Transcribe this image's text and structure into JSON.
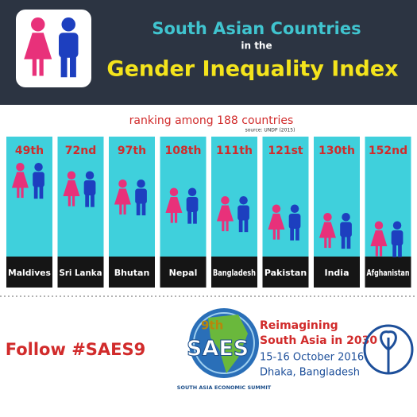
{
  "header": {
    "title_line1": "South Asian Countries",
    "title_line2": "in the",
    "title_line3": "Gender Inequality Index"
  },
  "subtitle": "ranking among 188 countries",
  "source": "source: UNDP (2015)",
  "countries": [
    {
      "rank": "49th",
      "name": "Maldives"
    },
    {
      "rank": "72nd",
      "name": "Sri Lanka"
    },
    {
      "rank": "97th",
      "name": "Bhutan"
    },
    {
      "rank": "108th",
      "name": "Nepal"
    },
    {
      "rank": "111th",
      "name": "Bangladesh"
    },
    {
      "rank": "121st",
      "name": "Pakistan"
    },
    {
      "rank": "130th",
      "name": "India"
    },
    {
      "rank": "152nd",
      "name": "Afghanistan"
    }
  ],
  "footer": {
    "hashtag": "Follow #SAES9",
    "logo": {
      "edition": "9th",
      "name": "SAES",
      "arc_text": "SOUTH ASIA ECONOMIC SUMMIT"
    },
    "event": {
      "line1": "Reimagining",
      "line2": "South Asia in 2030",
      "date": "15-16 October 2016",
      "place": "Dhaka, Bangladesh"
    }
  }
}
